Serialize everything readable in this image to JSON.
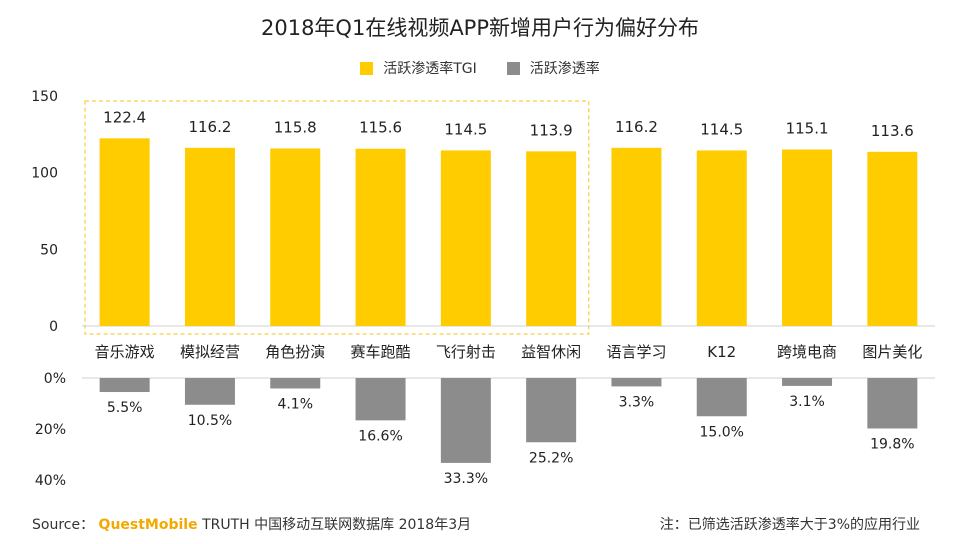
{
  "title": "2018年Q1在线视频APP新增用户行为偏好分布",
  "legend": {
    "tgi": "活跃渗透率TGI",
    "pen": "活跃渗透率"
  },
  "colors": {
    "tgi": "#FFCC00",
    "pen": "#8C8C8C",
    "highlight_border": "#F5C518"
  },
  "footer": {
    "source_label": "Source：",
    "brand": "QuestMobile",
    "source_rest": "TRUTH 中国移动互联网数据库 2018年3月",
    "note": "注：已筛选活跃渗透率大于3%的应用行业"
  },
  "chart_data": {
    "type": "bar",
    "categories": [
      "音乐游戏",
      "模拟经营",
      "角色扮演",
      "赛车跑酷",
      "飞行射击",
      "益智休闲",
      "语言学习",
      "K12",
      "跨境电商",
      "图片美化"
    ],
    "series": [
      {
        "name": "活跃渗透率TGI",
        "values": [
          122.4,
          116.2,
          115.8,
          115.6,
          114.5,
          113.9,
          116.2,
          114.5,
          115.1,
          113.6
        ],
        "labels": [
          "122.4",
          "116.2",
          "115.8",
          "115.6",
          "114.5",
          "113.9",
          "116.2",
          "114.5",
          "115.1",
          "113.6"
        ]
      },
      {
        "name": "活跃渗透率",
        "values": [
          5.5,
          10.5,
          4.1,
          16.6,
          33.3,
          25.2,
          3.3,
          15.0,
          3.1,
          19.8
        ],
        "labels": [
          "5.5%",
          "10.5%",
          "4.1%",
          "16.6%",
          "33.3%",
          "25.2%",
          "3.3%",
          "15.0%",
          "3.1%",
          "19.8%"
        ]
      }
    ],
    "top_yaxis": {
      "ylim": [
        0,
        150
      ],
      "ticks": [
        "0",
        "50",
        "100",
        "150"
      ]
    },
    "bottom_yaxis": {
      "ylim": [
        0,
        40
      ],
      "ticks": [
        "0%",
        "20%",
        "40%"
      ],
      "direction": "downward"
    },
    "highlight_group": [
      "音乐游戏",
      "模拟经营",
      "角色扮演",
      "赛车跑酷",
      "飞行射击",
      "益智休闲"
    ]
  }
}
